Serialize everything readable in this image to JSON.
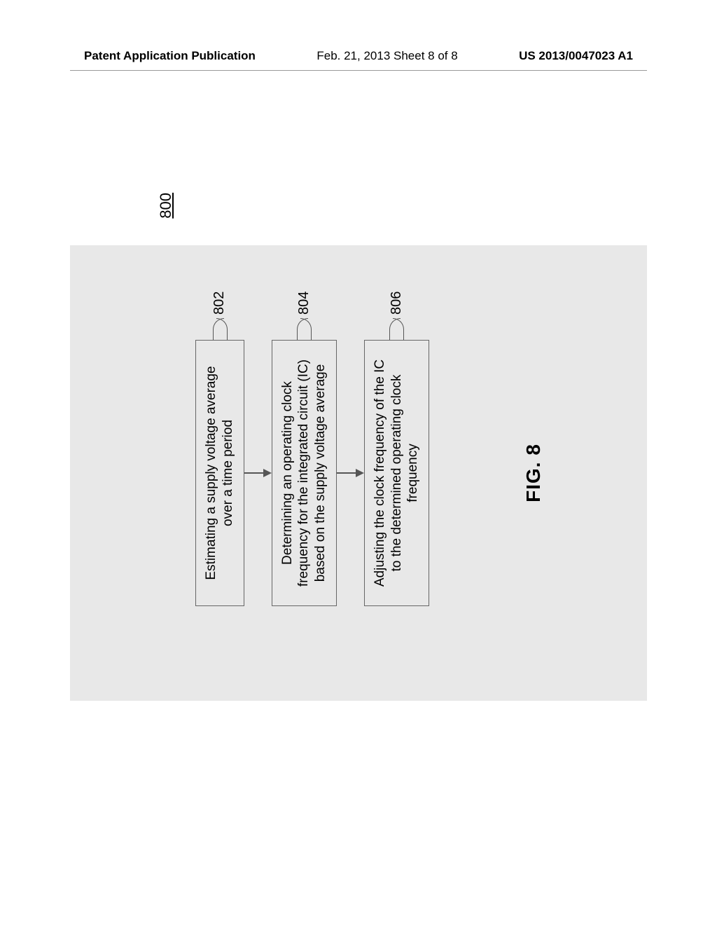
{
  "header": {
    "left": "Patent Application Publication",
    "center": "Feb. 21, 2013  Sheet 8 of 8",
    "right": "US 2013/0047023 A1"
  },
  "figure": {
    "ref": "800",
    "label": "FIG. 8",
    "background_color": "#e8e8e8",
    "box_border_color": "#666666",
    "text_color": "#333333",
    "font_size_box": 19,
    "font_size_label": 28,
    "font_size_callout": 20,
    "boxes": [
      {
        "id": "802",
        "text": "Estimating a supply voltage average over a time period"
      },
      {
        "id": "804",
        "text": "Determining an operating clock frequency for the integrated circuit (IC) based on the supply voltage average"
      },
      {
        "id": "806",
        "text": "Adjusting the clock frequency of the IC to the determined operating clock frequency"
      }
    ]
  }
}
